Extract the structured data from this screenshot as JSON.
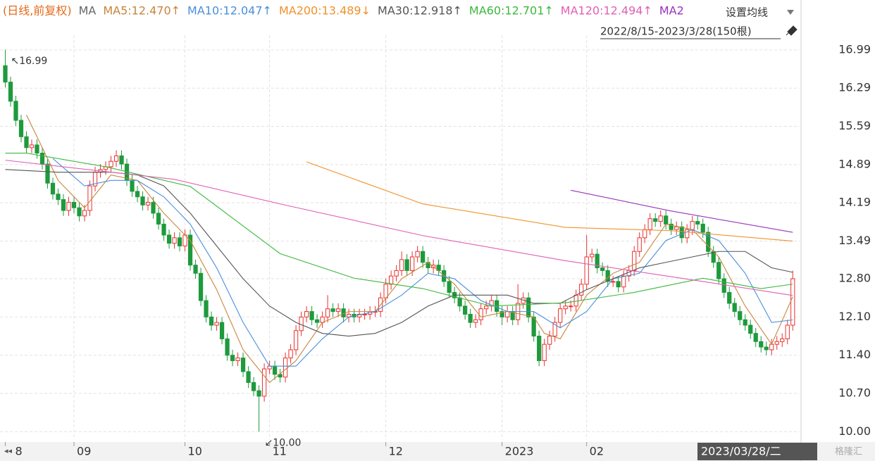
{
  "chart_data": {
    "type": "candlestick",
    "header_prefix": "(日线,前复权)",
    "ma_label": "MA",
    "settings_button": "设置均线",
    "date_range": "2022/8/15-2023/3/28(150根)",
    "cursor_label": "2023/03/28/二",
    "watermark": "格隆汇",
    "annotations": [
      {
        "text": "↖16.99",
        "x": 0,
        "y": 16.99
      },
      {
        "text": "↙10.00",
        "x": 48,
        "y": 10.0
      }
    ],
    "up_color": "#e8312f",
    "down_color": "#1e9a3c",
    "grid": true,
    "xlim": [
      -1,
      150.3
    ],
    "ylim": [
      9.85,
      17.13
    ],
    "xticks": [
      {
        "value": 0,
        "label": "8"
      },
      {
        "value": 13,
        "label": "09"
      },
      {
        "value": 34,
        "label": "10"
      },
      {
        "value": 50,
        "label": "11"
      },
      {
        "value": 72,
        "label": "12"
      },
      {
        "value": 94,
        "label": "2023"
      },
      {
        "value": 110,
        "label": "02"
      }
    ],
    "yticks": [
      {
        "value": 10,
        "label": "10.00"
      },
      {
        "value": 10.7,
        "label": "10.70"
      },
      {
        "value": 11.4,
        "label": "11.40"
      },
      {
        "value": 12.1,
        "label": "12.10"
      },
      {
        "value": 12.8,
        "label": "12.80"
      },
      {
        "value": 13.49,
        "label": "13.49"
      },
      {
        "value": 14.19,
        "label": "14.19"
      },
      {
        "value": 14.89,
        "label": "14.89"
      },
      {
        "value": 15.59,
        "label": "15.59"
      },
      {
        "value": 16.29,
        "label": "16.29"
      },
      {
        "value": 16.99,
        "label": "16.99"
      }
    ],
    "open": [
      16.7,
      16.4,
      16.05,
      15.7,
      15.4,
      15.2,
      15.25,
      15.1,
      14.9,
      14.55,
      14.35,
      14.25,
      14.05,
      14.2,
      14.1,
      13.95,
      14.05,
      14.5,
      14.75,
      14.8,
      14.85,
      14.95,
      15.05,
      14.9,
      14.6,
      14.4,
      14.3,
      14.15,
      14.2,
      14.0,
      13.8,
      13.6,
      13.45,
      13.55,
      13.4,
      13.6,
      13.05,
      12.9,
      12.4,
      12.1,
      11.95,
      12.0,
      11.7,
      11.4,
      11.3,
      11.35,
      11.1,
      10.9,
      10.75,
      10.65,
      11.15,
      11.2,
      11.05,
      11.0,
      11.35,
      11.5,
      11.85,
      12.1,
      12.2,
      12.05,
      12.0,
      12.1,
      12.25,
      12.2,
      12.25,
      12.1,
      12.15,
      12.1,
      12.15,
      12.15,
      12.2,
      12.2,
      12.45,
      12.7,
      12.85,
      12.95,
      13.15,
      12.95,
      13.2,
      13.3,
      13.1,
      13.0,
      13.05,
      12.95,
      12.75,
      12.55,
      12.45,
      12.3,
      12.15,
      12.0,
      12.05,
      12.25,
      12.3,
      12.4,
      12.2,
      12.1,
      12.2,
      12.05,
      12.35,
      12.45,
      12.1,
      11.75,
      11.3,
      11.6,
      11.75,
      12.0,
      12.25,
      12.3,
      12.3,
      12.5,
      12.7,
      13.2,
      13.25,
      13.0,
      12.95,
      12.75,
      12.75,
      12.65,
      12.85,
      12.95,
      13.3,
      13.55,
      13.7,
      13.9,
      13.85,
      13.95,
      13.8,
      13.7,
      13.75,
      13.55,
      13.7,
      13.85,
      13.8,
      13.65,
      13.3,
      13.1,
      12.8,
      12.55,
      12.35,
      12.2,
      12.05,
      11.95,
      11.8,
      11.65,
      11.55,
      11.5,
      11.6,
      11.65,
      11.7,
      11.95
    ],
    "high": [
      16.99,
      16.5,
      16.15,
      15.8,
      15.5,
      15.35,
      15.35,
      15.2,
      15.0,
      14.65,
      14.45,
      14.35,
      14.3,
      14.3,
      14.2,
      14.15,
      14.6,
      14.85,
      14.9,
      14.95,
      15.05,
      15.15,
      15.15,
      15.0,
      14.7,
      14.5,
      14.4,
      14.3,
      14.3,
      14.1,
      13.9,
      13.7,
      13.65,
      13.65,
      13.7,
      13.7,
      13.15,
      13.0,
      12.5,
      12.2,
      12.1,
      12.1,
      11.8,
      11.5,
      11.45,
      11.45,
      11.2,
      11.0,
      10.85,
      11.25,
      11.3,
      11.3,
      11.15,
      11.45,
      11.6,
      11.95,
      12.2,
      12.3,
      12.3,
      12.15,
      12.2,
      12.5,
      12.35,
      12.35,
      12.35,
      12.25,
      12.25,
      12.25,
      12.25,
      12.3,
      12.3,
      12.55,
      12.8,
      12.95,
      13.05,
      13.3,
      13.25,
      13.3,
      13.4,
      13.4,
      13.2,
      13.15,
      13.15,
      13.05,
      12.85,
      12.65,
      12.55,
      12.4,
      12.25,
      12.15,
      12.35,
      12.4,
      12.5,
      12.5,
      12.3,
      12.3,
      12.3,
      12.7,
      12.55,
      12.55,
      12.2,
      11.85,
      11.7,
      11.85,
      12.1,
      12.35,
      12.4,
      12.4,
      12.6,
      12.8,
      13.6,
      13.35,
      13.35,
      13.1,
      13.05,
      12.85,
      12.85,
      12.95,
      13.05,
      13.4,
      13.65,
      13.8,
      14.0,
      14.0,
      14.05,
      14.05,
      13.9,
      13.85,
      13.85,
      13.8,
      13.95,
      13.95,
      13.9,
      13.75,
      13.4,
      13.2,
      12.9,
      12.65,
      12.45,
      12.3,
      12.15,
      12.05,
      11.9,
      11.75,
      11.65,
      11.7,
      11.75,
      11.8,
      12.05,
      12.95
    ],
    "low": [
      16.3,
      15.95,
      15.6,
      15.3,
      15.1,
      15.1,
      15.0,
      14.8,
      14.45,
      14.25,
      14.15,
      13.95,
      13.95,
      14.0,
      13.85,
      13.85,
      13.95,
      14.4,
      14.65,
      14.7,
      14.75,
      14.85,
      14.8,
      14.5,
      14.3,
      14.2,
      14.05,
      14.05,
      13.9,
      13.7,
      13.5,
      13.35,
      13.35,
      13.3,
      13.3,
      12.95,
      12.8,
      12.3,
      12.0,
      11.85,
      11.85,
      11.6,
      11.3,
      11.2,
      11.2,
      11.0,
      10.8,
      10.65,
      10.0,
      10.55,
      11.05,
      10.95,
      10.9,
      10.9,
      11.25,
      11.4,
      11.75,
      12.0,
      11.95,
      11.9,
      11.9,
      12.0,
      12.1,
      12.1,
      12.0,
      12.0,
      12.0,
      12.0,
      12.05,
      12.05,
      12.1,
      12.1,
      12.35,
      12.6,
      12.75,
      12.85,
      12.85,
      12.85,
      13.1,
      13.0,
      12.9,
      12.9,
      12.85,
      12.65,
      12.45,
      12.35,
      12.2,
      12.05,
      11.9,
      11.9,
      11.95,
      12.15,
      12.2,
      12.1,
      11.95,
      12.0,
      11.95,
      11.95,
      12.25,
      12.0,
      11.65,
      11.2,
      11.2,
      11.5,
      11.65,
      11.9,
      12.15,
      12.2,
      12.2,
      12.4,
      12.6,
      13.1,
      12.9,
      12.85,
      12.65,
      12.65,
      12.55,
      12.55,
      12.75,
      12.85,
      13.2,
      13.45,
      13.6,
      13.75,
      13.75,
      13.7,
      13.6,
      13.6,
      13.45,
      13.45,
      13.6,
      13.7,
      13.55,
      13.2,
      13.0,
      12.7,
      12.45,
      12.25,
      12.1,
      11.95,
      11.85,
      11.7,
      11.55,
      11.45,
      11.4,
      11.4,
      11.5,
      11.55,
      11.6,
      11.85
    ],
    "close": [
      16.4,
      16.05,
      15.7,
      15.4,
      15.2,
      15.25,
      15.1,
      14.9,
      14.55,
      14.35,
      14.25,
      14.05,
      14.2,
      14.1,
      13.95,
      14.05,
      14.5,
      14.75,
      14.8,
      14.85,
      14.95,
      15.05,
      14.9,
      14.6,
      14.4,
      14.3,
      14.15,
      14.2,
      14.0,
      13.8,
      13.6,
      13.45,
      13.55,
      13.4,
      13.6,
      13.05,
      12.9,
      12.4,
      12.1,
      11.95,
      12.0,
      11.7,
      11.4,
      11.3,
      11.35,
      11.1,
      10.9,
      10.75,
      10.65,
      11.15,
      11.2,
      11.05,
      11.0,
      11.35,
      11.5,
      11.85,
      12.1,
      12.2,
      12.05,
      12.0,
      12.1,
      12.25,
      12.2,
      12.25,
      12.1,
      12.15,
      12.1,
      12.15,
      12.15,
      12.2,
      12.2,
      12.45,
      12.7,
      12.85,
      12.95,
      13.15,
      12.95,
      13.2,
      13.3,
      13.1,
      13.0,
      13.05,
      12.95,
      12.75,
      12.55,
      12.45,
      12.3,
      12.15,
      12.0,
      12.05,
      12.25,
      12.3,
      12.4,
      12.2,
      12.1,
      12.2,
      12.05,
      12.35,
      12.45,
      12.1,
      11.75,
      11.3,
      11.6,
      11.75,
      12.0,
      12.25,
      12.3,
      12.3,
      12.5,
      12.7,
      13.2,
      13.25,
      13.0,
      12.95,
      12.75,
      12.75,
      12.65,
      12.85,
      12.95,
      13.3,
      13.55,
      13.7,
      13.9,
      13.85,
      13.95,
      13.8,
      13.7,
      13.75,
      13.55,
      13.7,
      13.85,
      13.8,
      13.65,
      13.3,
      13.1,
      12.8,
      12.55,
      12.35,
      12.2,
      12.05,
      11.95,
      11.8,
      11.65,
      11.55,
      11.5,
      11.6,
      11.65,
      11.7,
      11.95,
      12.8
    ],
    "series": [
      {
        "name": "MA5:12.470↑",
        "color": "#c8853c",
        "x": [
          4,
          10,
          15,
          20,
          25,
          30,
          35,
          40,
          45,
          50,
          55,
          60,
          65,
          70,
          75,
          80,
          85,
          90,
          95,
          100,
          102,
          105,
          110,
          115,
          120,
          125,
          130,
          135,
          140,
          145,
          149
        ],
        "values": [
          15.8,
          14.6,
          14.1,
          14.7,
          14.6,
          14.0,
          13.5,
          12.6,
          11.5,
          10.9,
          11.3,
          12.0,
          12.2,
          12.2,
          12.8,
          13.1,
          12.7,
          12.1,
          12.2,
          12.1,
          11.8,
          11.7,
          12.5,
          12.9,
          13.1,
          13.8,
          13.7,
          13.2,
          12.3,
          11.6,
          12.47
        ]
      },
      {
        "name": "MA10:12.047↑",
        "color": "#4a8fdc",
        "x": [
          9,
          15,
          20,
          25,
          30,
          35,
          40,
          45,
          50,
          55,
          60,
          65,
          70,
          75,
          80,
          85,
          90,
          95,
          100,
          105,
          110,
          115,
          120,
          125,
          130,
          135,
          140,
          145,
          149
        ],
        "values": [
          15.0,
          14.5,
          14.6,
          14.6,
          14.3,
          13.8,
          13.0,
          12.0,
          11.2,
          11.2,
          11.7,
          12.1,
          12.2,
          12.5,
          12.9,
          12.8,
          12.4,
          12.2,
          12.2,
          11.9,
          12.2,
          12.8,
          12.9,
          13.5,
          13.7,
          13.5,
          12.9,
          12.0,
          12.047
        ]
      },
      {
        "name": "MA200:13.489↓",
        "color": "#f0922c",
        "x": [
          57,
          79,
          106,
          126,
          149
        ],
        "values": [
          14.94,
          14.17,
          13.74,
          13.68,
          13.489
        ]
      },
      {
        "name": "MA30:12.918↑",
        "color": "#555555",
        "x": [
          0,
          10,
          20,
          25,
          30,
          35,
          40,
          45,
          50,
          55,
          60,
          65,
          70,
          75,
          80,
          85,
          90,
          95,
          100,
          105,
          110,
          115,
          120,
          125,
          130,
          135,
          140,
          145,
          149
        ],
        "values": [
          14.8,
          14.75,
          14.75,
          14.7,
          14.5,
          14.0,
          13.4,
          12.8,
          12.3,
          12.0,
          11.8,
          11.75,
          11.8,
          12.0,
          12.3,
          12.5,
          12.5,
          12.5,
          12.35,
          12.35,
          12.6,
          12.8,
          13.0,
          13.1,
          13.2,
          13.3,
          13.3,
          13.0,
          12.918
        ]
      },
      {
        "name": "MA60:12.701↑",
        "color": "#3cb83c",
        "x": [
          0,
          4,
          19,
          35,
          52,
          66,
          79,
          92,
          106,
          119,
          132,
          143,
          149
        ],
        "values": [
          15.1,
          15.1,
          14.85,
          14.49,
          13.26,
          12.81,
          12.62,
          12.3,
          12.36,
          12.55,
          12.81,
          12.62,
          12.701
        ]
      },
      {
        "name": "MA120:12.494↑",
        "color": "#e060b4",
        "x": [
          0,
          32,
          52,
          79,
          106,
          119,
          132,
          149
        ],
        "values": [
          14.97,
          14.62,
          14.17,
          13.59,
          13.13,
          12.94,
          12.75,
          12.494
        ]
      },
      {
        "name": "MA2",
        "color": "#9933bb",
        "x": [
          107,
          126,
          149
        ],
        "values": [
          14.42,
          14.04,
          13.65
        ]
      }
    ]
  }
}
